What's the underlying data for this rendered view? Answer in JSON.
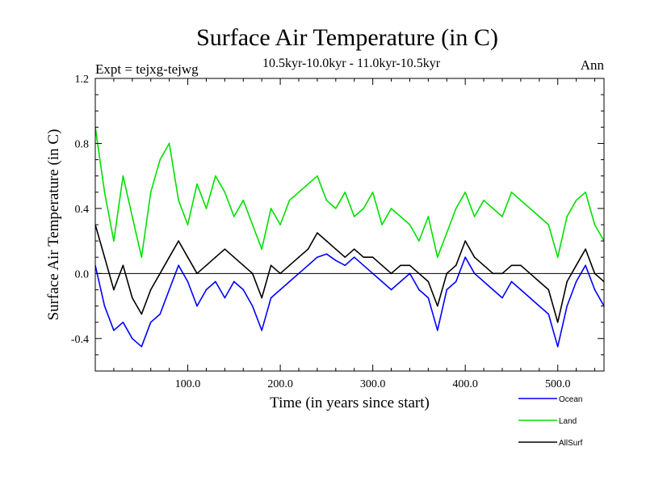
{
  "chart_data": {
    "type": "line",
    "title": "Surface Air Temperature (in C)",
    "subtitle": "10.5kyr-10.0kyr - 11.0kyr-10.5kyr",
    "expt_label": "Expt = tejxg-tejwg",
    "period_label": "Ann",
    "xlabel": "Time (in years since start)",
    "ylabel": "Surface Air Temperature (in C)",
    "xlim": [
      0,
      550
    ],
    "ylim": [
      -0.6,
      1.2
    ],
    "xticks": [
      100,
      200,
      300,
      400,
      500
    ],
    "xtick_labels": [
      "100.0",
      "200.0",
      "300.0",
      "400.0",
      "500.0"
    ],
    "yticks": [
      -0.4,
      0.0,
      0.4,
      0.8,
      1.2
    ],
    "ytick_labels": [
      "-0.4",
      "0.0",
      "0.4",
      "0.8",
      "1.2"
    ],
    "zero_line": true,
    "legend_position": "bottom-right",
    "series": [
      {
        "name": "Ocean",
        "color": "#0000ff",
        "x": [
          0,
          10,
          20,
          30,
          40,
          50,
          60,
          70,
          80,
          90,
          100,
          110,
          120,
          130,
          140,
          150,
          160,
          170,
          180,
          190,
          200,
          210,
          220,
          230,
          240,
          250,
          260,
          270,
          280,
          290,
          300,
          310,
          320,
          330,
          340,
          350,
          360,
          370,
          380,
          390,
          400,
          410,
          420,
          430,
          440,
          450,
          460,
          470,
          480,
          490,
          500,
          510,
          520,
          530,
          540,
          550
        ],
        "values": [
          0.05,
          -0.2,
          -0.35,
          -0.3,
          -0.4,
          -0.45,
          -0.3,
          -0.25,
          -0.1,
          0.05,
          -0.05,
          -0.2,
          -0.1,
          -0.05,
          -0.15,
          -0.05,
          -0.1,
          -0.2,
          -0.35,
          -0.15,
          -0.1,
          -0.05,
          0.0,
          0.05,
          0.1,
          0.12,
          0.08,
          0.05,
          0.1,
          0.05,
          0.0,
          -0.05,
          -0.1,
          -0.05,
          0.0,
          -0.1,
          -0.15,
          -0.35,
          -0.1,
          -0.05,
          0.1,
          0.0,
          -0.05,
          -0.1,
          -0.15,
          -0.05,
          -0.1,
          -0.15,
          -0.2,
          -0.25,
          -0.45,
          -0.2,
          -0.05,
          0.05,
          -0.1,
          -0.2
        ]
      },
      {
        "name": "Land",
        "color": "#00e000",
        "x": [
          0,
          10,
          20,
          30,
          40,
          50,
          60,
          70,
          80,
          90,
          100,
          110,
          120,
          130,
          140,
          150,
          160,
          170,
          180,
          190,
          200,
          210,
          220,
          230,
          240,
          250,
          260,
          270,
          280,
          290,
          300,
          310,
          320,
          330,
          340,
          350,
          360,
          370,
          380,
          390,
          400,
          410,
          420,
          430,
          440,
          450,
          460,
          470,
          480,
          490,
          500,
          510,
          520,
          530,
          540,
          550
        ],
        "values": [
          0.9,
          0.5,
          0.2,
          0.6,
          0.35,
          0.1,
          0.5,
          0.7,
          0.8,
          0.45,
          0.3,
          0.55,
          0.4,
          0.6,
          0.5,
          0.35,
          0.45,
          0.3,
          0.15,
          0.4,
          0.3,
          0.45,
          0.5,
          0.55,
          0.6,
          0.45,
          0.4,
          0.5,
          0.35,
          0.4,
          0.5,
          0.3,
          0.4,
          0.35,
          0.3,
          0.2,
          0.35,
          0.1,
          0.25,
          0.4,
          0.5,
          0.35,
          0.45,
          0.4,
          0.35,
          0.5,
          0.45,
          0.4,
          0.35,
          0.3,
          0.1,
          0.35,
          0.45,
          0.5,
          0.3,
          0.2
        ]
      },
      {
        "name": "AllSurf",
        "color": "#000000",
        "x": [
          0,
          10,
          20,
          30,
          40,
          50,
          60,
          70,
          80,
          90,
          100,
          110,
          120,
          130,
          140,
          150,
          160,
          170,
          180,
          190,
          200,
          210,
          220,
          230,
          240,
          250,
          260,
          270,
          280,
          290,
          300,
          310,
          320,
          330,
          340,
          350,
          360,
          370,
          380,
          390,
          400,
          410,
          420,
          430,
          440,
          450,
          460,
          470,
          480,
          490,
          500,
          510,
          520,
          530,
          540,
          550
        ],
        "values": [
          0.3,
          0.1,
          -0.1,
          0.05,
          -0.15,
          -0.25,
          -0.1,
          0.0,
          0.1,
          0.2,
          0.1,
          0.0,
          0.05,
          0.1,
          0.15,
          0.1,
          0.05,
          0.0,
          -0.15,
          0.05,
          0.0,
          0.05,
          0.1,
          0.15,
          0.25,
          0.2,
          0.15,
          0.1,
          0.15,
          0.1,
          0.1,
          0.05,
          0.0,
          0.05,
          0.05,
          0.0,
          -0.05,
          -0.2,
          0.0,
          0.05,
          0.2,
          0.1,
          0.05,
          0.0,
          0.0,
          0.05,
          0.05,
          0.0,
          -0.05,
          -0.1,
          -0.3,
          -0.05,
          0.05,
          0.15,
          0.0,
          -0.05
        ]
      }
    ]
  }
}
